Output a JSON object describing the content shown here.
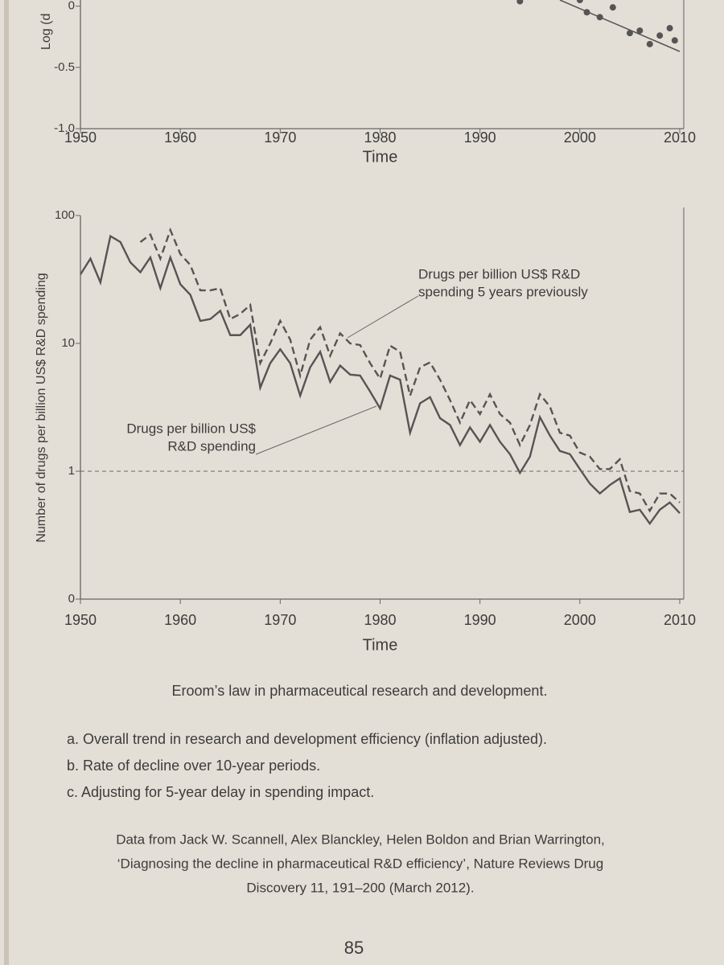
{
  "chart_data": [
    {
      "type": "scatter",
      "ylabel": "Log (d",
      "xlabel": "Time",
      "xlim": [
        1950,
        2010
      ],
      "xticks": [
        1950,
        1960,
        1970,
        1980,
        1990,
        2000,
        2010
      ],
      "ylim": [
        -1.0,
        0.05
      ],
      "yticks": [
        0,
        -0.5,
        {
          "value": -1.0,
          "label": "-1.0"
        }
      ],
      "x": [
        1994,
        2000,
        2000.7,
        2002,
        2003.3,
        2005,
        2006,
        2007,
        2008,
        2009,
        2009.5
      ],
      "values": [
        0.04,
        0.05,
        -0.05,
        -0.09,
        -0.01,
        -0.22,
        -0.2,
        -0.31,
        -0.24,
        -0.18,
        -0.28
      ],
      "color": "#555555",
      "trend": {
        "x": [
          1998,
          2010
        ],
        "values": [
          0.05,
          -0.37
        ]
      }
    },
    {
      "type": "line",
      "ylabel": "Number of drugs per billion US$ R&D spending",
      "xlabel": "Time",
      "log_scale": true,
      "xlim": [
        1950,
        2010
      ],
      "xticks": [
        1950,
        1960,
        1970,
        1980,
        1990,
        2000,
        2010
      ],
      "ylim": [
        0.1,
        100
      ],
      "yticks": [
        {
          "value": 0.1,
          "label": "0"
        },
        1,
        10,
        100
      ],
      "reference_line": 1,
      "x": [
        1950,
        1951,
        1952,
        1953,
        1954,
        1955,
        1956,
        1957,
        1958,
        1959,
        1960,
        1961,
        1962,
        1963,
        1964,
        1965,
        1966,
        1967,
        1968,
        1969,
        1970,
        1971,
        1972,
        1973,
        1974,
        1975,
        1976,
        1977,
        1978,
        1979,
        1980,
        1981,
        1982,
        1983,
        1984,
        1985,
        1986,
        1987,
        1988,
        1989,
        1990,
        1991,
        1992,
        1993,
        1994,
        1995,
        1996,
        1997,
        1998,
        1999,
        2000,
        2001,
        2002,
        2003,
        2004,
        2005,
        2006,
        2007,
        2008,
        2009,
        2010
      ],
      "series": [
        {
          "style": "solid",
          "color": "#555555",
          "values": [
            34.6,
            46,
            30,
            69,
            62,
            43,
            36,
            47,
            27,
            47,
            29,
            24,
            15,
            15.5,
            18,
            11.6,
            11.6,
            14,
            4.5,
            7,
            9,
            7,
            3.9,
            6.5,
            8.6,
            5,
            6.7,
            5.7,
            5.6,
            4.2,
            3.1,
            5.6,
            5.2,
            2,
            3.4,
            3.8,
            2.6,
            2.3,
            1.6,
            2.2,
            1.7,
            2.3,
            1.7,
            1.36,
            0.97,
            1.3,
            2.65,
            1.9,
            1.44,
            1.36,
            1.04,
            0.8,
            0.67,
            0.78,
            0.88,
            0.48,
            0.5,
            0.39,
            0.5,
            0.57,
            0.47
          ]
        },
        {
          "style": "dashed",
          "color": "#555555",
          "values": [
            null,
            null,
            null,
            null,
            null,
            null,
            62,
            71,
            46,
            77,
            50,
            41,
            26,
            26,
            27,
            15.5,
            17,
            20,
            7,
            10,
            15,
            10.7,
            5.6,
            10.7,
            13.4,
            8,
            12,
            10,
            9.7,
            7,
            5.3,
            9.6,
            8.6,
            3.9,
            6.5,
            7.1,
            5.2,
            3.6,
            2.4,
            3.6,
            2.8,
            4,
            2.8,
            2.4,
            1.6,
            2.3,
            4,
            3.2,
            2,
            1.9,
            1.4,
            1.3,
            1.04,
            1.04,
            1.24,
            0.7,
            0.67,
            0.49,
            0.67,
            0.67,
            0.57
          ]
        }
      ],
      "annotations": [
        {
          "series": 1,
          "lines": [
            "Drugs per billion US$ R&D",
            "spending 5 years previously"
          ]
        },
        {
          "series": 0,
          "lines": [
            "Drugs per billion US$",
            "R&D spending"
          ]
        }
      ]
    }
  ],
  "caption": "Eroom’s law in pharmaceutical research and development.",
  "notes": [
    "a. Overall trend in research and development efficiency (inflation adjusted).",
    "b. Rate of decline over 10-year periods.",
    "c. Adjusting for 5-year delay in spending impact."
  ],
  "source": [
    "Data from Jack W. Scannell, Alex Blanckley, Helen Boldon and Brian Warrington,",
    "‘Diagnosing the decline in pharmaceutical R&D efficiency’, Nature Reviews Drug",
    "Discovery 11, 191–200 (March 2012)."
  ],
  "page_number": "85"
}
